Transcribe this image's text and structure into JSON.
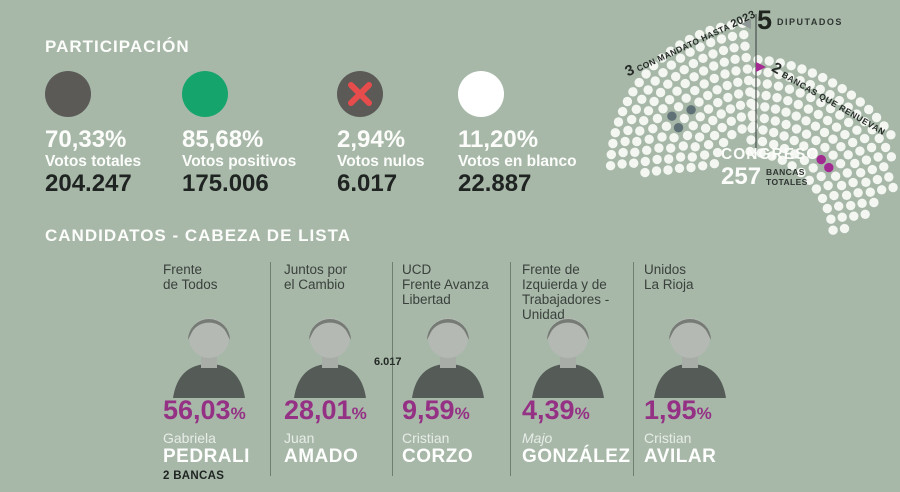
{
  "participation": {
    "title": "PARTICIPACIÓN",
    "items": [
      {
        "icon": "total-votes-circle",
        "color": "#5c5a57",
        "pct": "70,33%",
        "label": "Votos totales",
        "value": "204.247"
      },
      {
        "icon": "positive-votes-circle",
        "color": "#16a46d",
        "pct": "85,68%",
        "label": "Votos positivos",
        "value": "175.006"
      },
      {
        "icon": "null-votes-circle",
        "color": "#5c5a57",
        "x_color": "#e64c4c",
        "pct": "2,94%",
        "label": "Votos nulos",
        "value": "6.017"
      },
      {
        "icon": "blank-votes-circle",
        "color": "#ffffff",
        "pct": "11,20%",
        "label": "Votos en blanco",
        "value": "22.887"
      }
    ]
  },
  "congress": {
    "mandate_num": "3",
    "mandate_text": " CON MANDATO HASTA ",
    "mandate_year": "2023",
    "deputies_num": "5",
    "deputies_label": "DIPUTADOS",
    "renew_num": "2",
    "renew_text": " BANCAS QUE RENUEVAN",
    "congress_word": "CONGRESO",
    "total_num": "257",
    "total_label_line1": "BANCAS",
    "total_label_line2": "TOTALES",
    "seats_total": 257,
    "seats_con_mandato": 3,
    "seats_que_renuevan": 2,
    "seat_color": "#f3f6f1",
    "seat_gray": "#5f7076",
    "seat_magenta": "#a12b90"
  },
  "candidates": {
    "title": "CANDIDATOS - CABEZA DE LISTA",
    "pct_sign": "%",
    "stray_value": "6.017",
    "cards": [
      {
        "party": "Frente\nde Todos",
        "pct": "56,03",
        "first": "Gabriela",
        "last": "PEDRALI",
        "note": "2 BANCAS"
      },
      {
        "party": "Juntos por\nel Cambio",
        "pct": "28,01",
        "first": "Juan",
        "last": "AMADO",
        "note": ""
      },
      {
        "party": "UCD\nFrente Avanza\nLibertad",
        "pct": "9,59",
        "first": "Cristian",
        "last": "CORZO",
        "note": ""
      },
      {
        "party": "Frente de\nIzquierda y de\nTrabajadores -\nUnidad",
        "pct": "4,39",
        "first": "Majo",
        "last": "GONZÁLEZ",
        "note": ""
      },
      {
        "party": "Unidos\nLa Rioja",
        "pct": "1,95",
        "first": "Cristian",
        "last": "AVILAR",
        "note": ""
      }
    ]
  },
  "colors": {
    "background": "#a7b8a8",
    "accent_magenta": "#953185",
    "green": "#16a46d",
    "red_x": "#e64c4c",
    "dark_text": "#1f2321",
    "white_text": "#fcfdfb"
  }
}
